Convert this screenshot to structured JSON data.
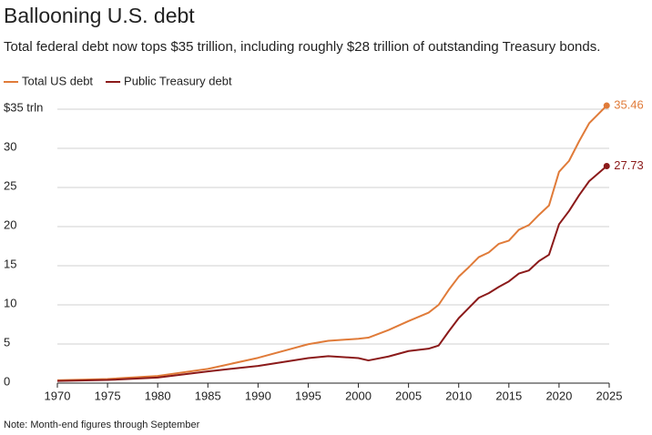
{
  "chart_data": {
    "type": "line",
    "title": "Ballooning U.S. debt",
    "subtitle": "Total federal debt now tops $35 trillion, including roughly $28 trillion of outstanding Treasury bonds.",
    "note": "Note: Month-end figures through September",
    "x": [
      1970,
      1975,
      1980,
      1985,
      1990,
      1995,
      1997,
      2000,
      2001,
      2003,
      2005,
      2007,
      2008,
      2009,
      2010,
      2011,
      2012,
      2013,
      2014,
      2015,
      2016,
      2017,
      2018,
      2019,
      2020,
      2021,
      2022,
      2023,
      2024.75
    ],
    "series": [
      {
        "name": "Total US debt",
        "color": "#e07b39",
        "values": [
          0.37,
          0.53,
          0.91,
          1.82,
          3.23,
          4.97,
          5.41,
          5.67,
          5.81,
          6.78,
          7.93,
          9.0,
          10.0,
          11.9,
          13.6,
          14.8,
          16.1,
          16.7,
          17.8,
          18.2,
          19.6,
          20.2,
          21.5,
          22.7,
          27.0,
          28.4,
          30.9,
          33.2,
          35.46
        ]
      },
      {
        "name": "Public Treasury debt",
        "color": "#8b1a1a",
        "values": [
          0.28,
          0.4,
          0.71,
          1.5,
          2.2,
          3.2,
          3.45,
          3.2,
          2.9,
          3.4,
          4.1,
          4.4,
          4.8,
          6.6,
          8.3,
          9.6,
          10.9,
          11.5,
          12.3,
          13.0,
          14.0,
          14.4,
          15.6,
          16.4,
          20.3,
          22.0,
          24.0,
          25.8,
          27.73
        ]
      }
    ],
    "xlim": [
      1970,
      2025
    ],
    "xticks": [
      1970,
      1975,
      1980,
      1985,
      1990,
      1995,
      2000,
      2005,
      2010,
      2015,
      2020,
      2025
    ],
    "ylim": [
      0,
      35
    ],
    "yticks": [
      0,
      5,
      10,
      15,
      20,
      25,
      30,
      {
        "value": 35,
        "label": "$35 trln"
      }
    ],
    "grid": true,
    "legend": "top-left"
  }
}
